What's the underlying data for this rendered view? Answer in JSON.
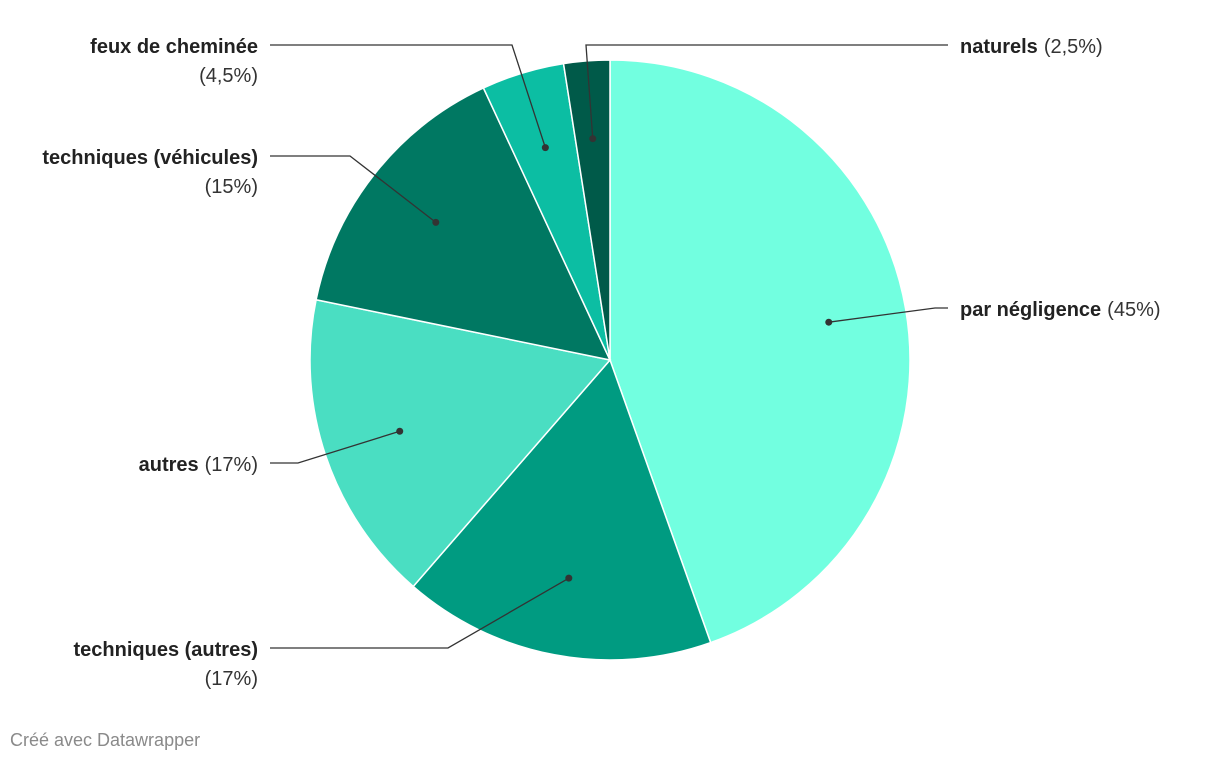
{
  "chart_data": {
    "type": "pie",
    "slices": [
      {
        "label": "par négligence",
        "value": 45,
        "value_label": "(45%)",
        "color": "#72ffe0"
      },
      {
        "label": "techniques (autres)",
        "value": 17,
        "value_label": "(17%)",
        "color": "#009b81"
      },
      {
        "label": "autres",
        "value": 17,
        "value_label": "(17%)",
        "color": "#4adec2"
      },
      {
        "label": "techniques (véhicules)",
        "value": 15,
        "value_label": "(15%)",
        "color": "#007862"
      },
      {
        "label": "feux de cheminée",
        "value": 4.5,
        "value_label": "(4,5%)",
        "color": "#0cbea3"
      },
      {
        "label": "naturels",
        "value": 2.5,
        "value_label": "(2,5%)",
        "color": "#005a49"
      }
    ],
    "start": "12 o'clock",
    "direction": "clockwise"
  },
  "footer": {
    "credit": "Créé avec Datawrapper"
  }
}
